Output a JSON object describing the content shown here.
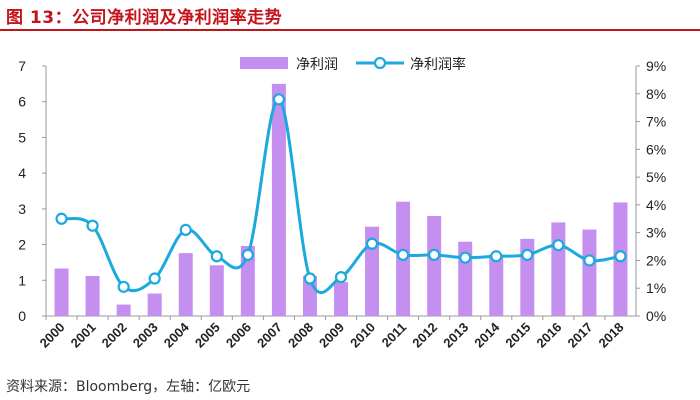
{
  "figure": {
    "title": "图 13：公司净利润及净利润率走势",
    "source": "资料来源：Bloomberg，左轴：亿欧元"
  },
  "colors": {
    "title": "#c4141b",
    "bar": "#c58ff0",
    "line": "#1ca9de",
    "marker_fill": "#ffffff"
  },
  "chart_data": {
    "type": "bar+line",
    "categories": [
      "2000",
      "2001",
      "2002",
      "2003",
      "2004",
      "2005",
      "2006",
      "2007",
      "2008",
      "2009",
      "2010",
      "2011",
      "2012",
      "2013",
      "2014",
      "2015",
      "2016",
      "2017",
      "2018"
    ],
    "series": [
      {
        "name": "净利润",
        "type": "bar",
        "axis": "left",
        "values": [
          1.33,
          1.12,
          0.32,
          0.63,
          1.76,
          1.42,
          1.96,
          6.5,
          1.12,
          0.95,
          2.5,
          3.2,
          2.8,
          2.08,
          1.72,
          2.16,
          2.62,
          2.42,
          3.18
        ]
      },
      {
        "name": "净利润率",
        "type": "line",
        "axis": "right",
        "values": [
          3.5,
          3.25,
          1.05,
          1.35,
          3.1,
          2.15,
          2.2,
          7.8,
          1.35,
          1.4,
          2.6,
          2.2,
          2.2,
          2.1,
          2.15,
          2.2,
          2.55,
          2.0,
          2.15
        ]
      }
    ],
    "y_left": {
      "min": 0,
      "max": 7,
      "ticks": [
        "0",
        "1",
        "2",
        "3",
        "4",
        "5",
        "6",
        "7"
      ]
    },
    "y_right": {
      "min": 0,
      "max": 9,
      "ticks": [
        "0%",
        "1%",
        "2%",
        "3%",
        "4%",
        "5%",
        "6%",
        "7%",
        "8%",
        "9%"
      ]
    },
    "legend": {
      "placement": "top-center",
      "entries": [
        "净利润",
        "净利润率"
      ]
    },
    "grid": false
  }
}
